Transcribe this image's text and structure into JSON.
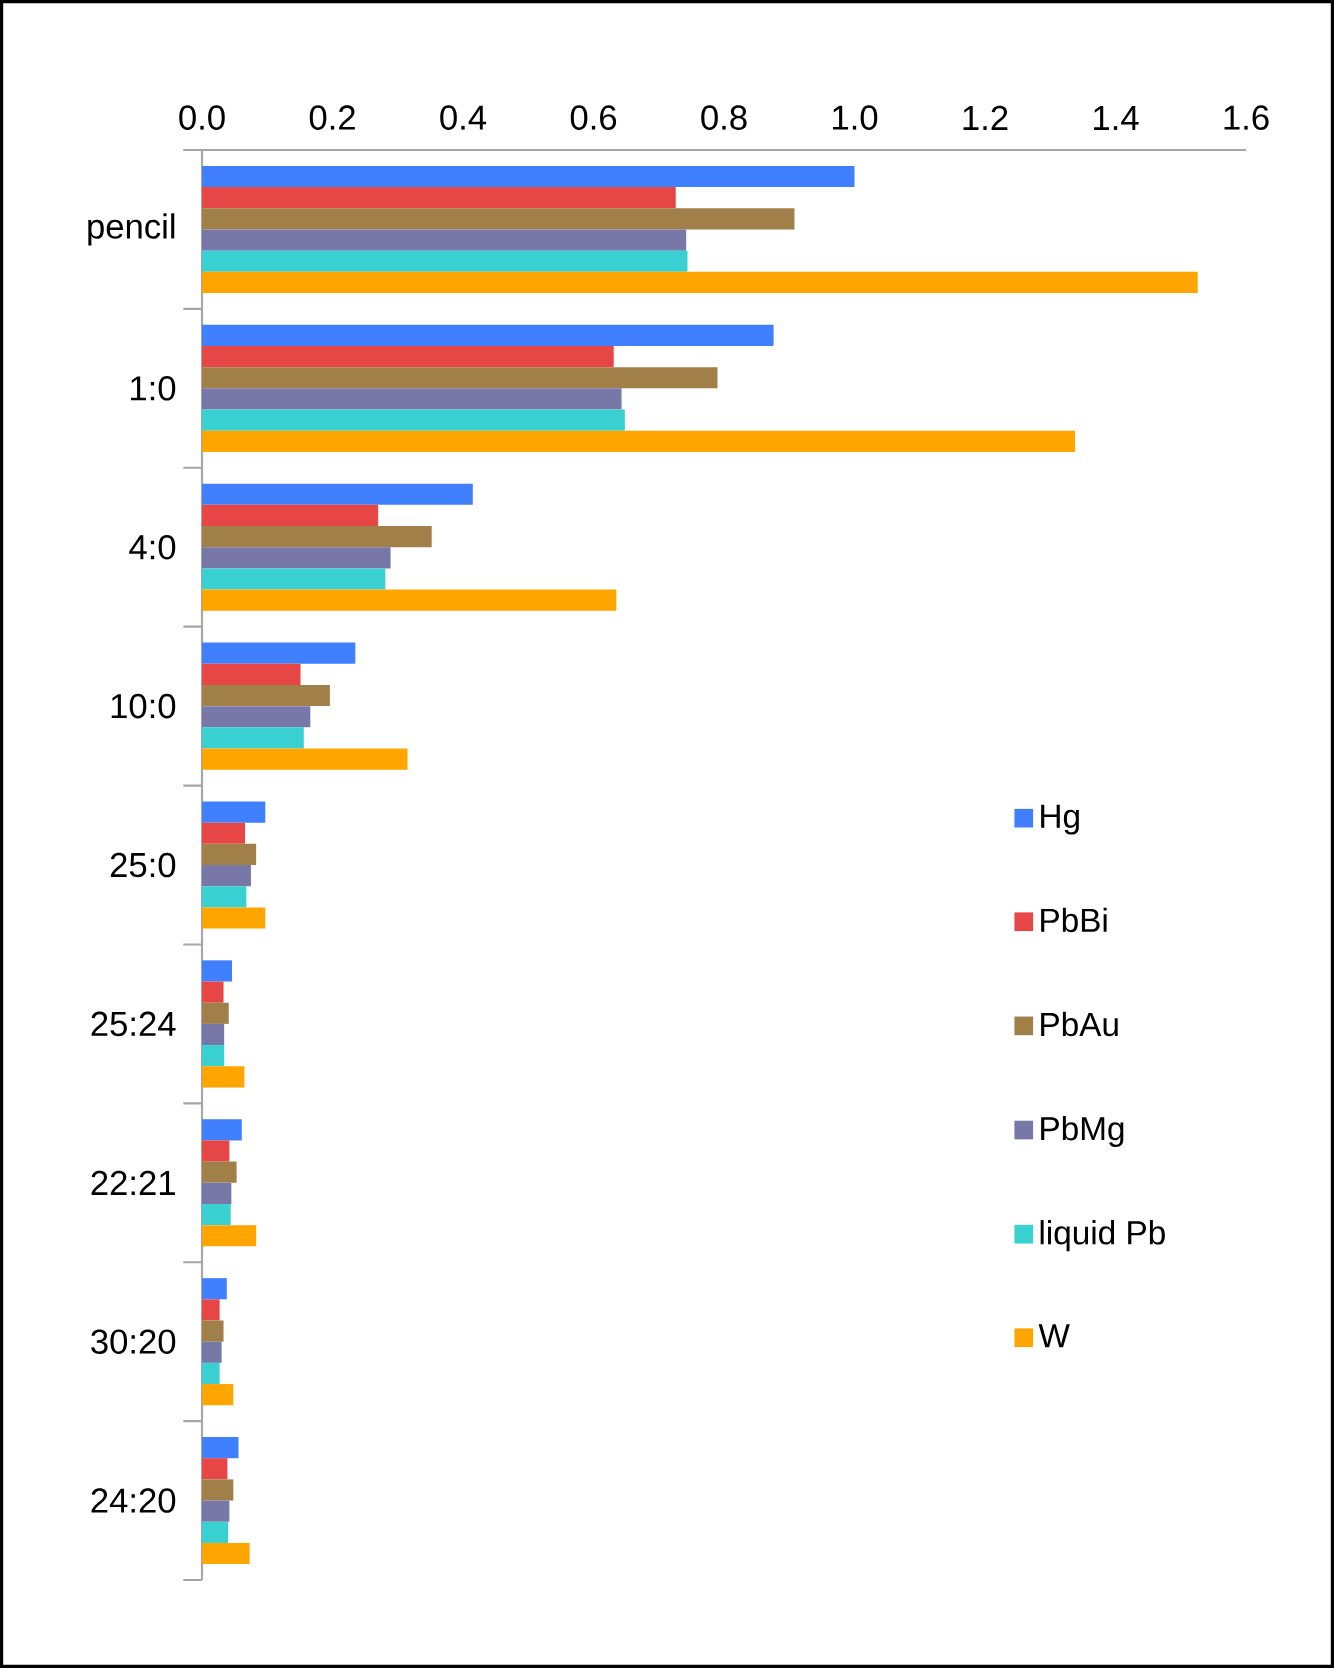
{
  "chart_data": {
    "type": "bar",
    "orientation": "horizontal",
    "categories": [
      "pencil",
      "1:0",
      "4:0",
      "10:0",
      "25:0",
      "25:24",
      "22:21",
      "30:20",
      "24:20"
    ],
    "series": [
      {
        "name": "Hg",
        "color": "#4080ff",
        "values": [
          1.0,
          0.876,
          0.415,
          0.235,
          0.097,
          0.046,
          0.061,
          0.038,
          0.056
        ]
      },
      {
        "name": "PbBi",
        "color": "#e64646",
        "values": [
          0.726,
          0.631,
          0.27,
          0.151,
          0.066,
          0.033,
          0.042,
          0.027,
          0.039
        ]
      },
      {
        "name": "PbAu",
        "color": "#a08048",
        "values": [
          0.908,
          0.79,
          0.352,
          0.196,
          0.083,
          0.041,
          0.053,
          0.033,
          0.048
        ]
      },
      {
        "name": "PbMg",
        "color": "#7878a8",
        "values": [
          0.742,
          0.643,
          0.289,
          0.166,
          0.075,
          0.034,
          0.045,
          0.03,
          0.042
        ]
      },
      {
        "name": "liquid Pb",
        "color": "#38d0d0",
        "values": [
          0.744,
          0.648,
          0.281,
          0.156,
          0.068,
          0.034,
          0.044,
          0.027,
          0.04
        ]
      },
      {
        "name": "W",
        "color": "#ffa500",
        "values": [
          1.526,
          1.338,
          0.635,
          0.315,
          0.097,
          0.065,
          0.083,
          0.048,
          0.073
        ]
      }
    ],
    "xlim": [
      0,
      1.6
    ],
    "xticks": [
      {
        "value": 0,
        "label": "0.0"
      },
      0.2,
      0.4,
      0.6,
      0.8,
      {
        "value": 1,
        "label": "1.0"
      },
      1.2,
      1.4,
      1.6
    ],
    "grid": false,
    "legend": "right"
  }
}
